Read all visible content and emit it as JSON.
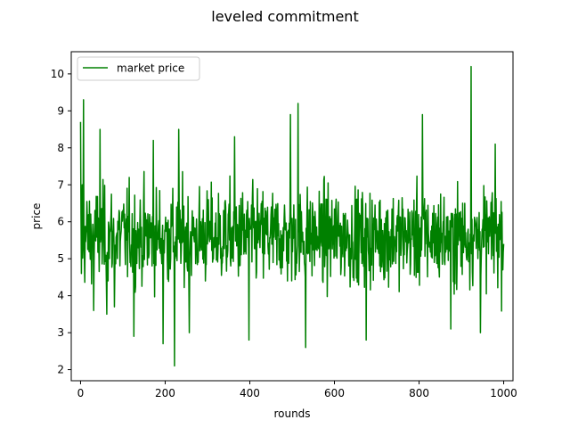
{
  "chart_data": {
    "type": "line",
    "title": "leveled commitment",
    "xlabel": "rounds",
    "ylabel": "price",
    "xlim": [
      -22,
      1022
    ],
    "ylim": [
      1.7,
      10.6
    ],
    "xticks": [
      0,
      200,
      400,
      600,
      800,
      1000
    ],
    "yticks": [
      2,
      3,
      4,
      5,
      6,
      7,
      8,
      9,
      10
    ],
    "grid": false,
    "legend_position": "top-left",
    "series": [
      {
        "name": "market price",
        "color": "#008000",
        "n_points": 1000,
        "mean": 5.6,
        "anchors": [
          {
            "x": 0,
            "y": 8.7
          },
          {
            "x": 2,
            "y": 4.6
          },
          {
            "x": 4,
            "y": 7.0
          },
          {
            "x": 7,
            "y": 9.3
          },
          {
            "x": 9,
            "y": 5.0
          },
          {
            "x": 31,
            "y": 3.6
          },
          {
            "x": 46,
            "y": 8.5
          },
          {
            "x": 62,
            "y": 3.5
          },
          {
            "x": 80,
            "y": 3.7
          },
          {
            "x": 126,
            "y": 2.9
          },
          {
            "x": 172,
            "y": 8.2
          },
          {
            "x": 195,
            "y": 2.7
          },
          {
            "x": 222,
            "y": 2.1
          },
          {
            "x": 232,
            "y": 8.5
          },
          {
            "x": 257,
            "y": 3.0
          },
          {
            "x": 364,
            "y": 8.3
          },
          {
            "x": 398,
            "y": 2.8
          },
          {
            "x": 496,
            "y": 8.9
          },
          {
            "x": 514,
            "y": 9.2
          },
          {
            "x": 532,
            "y": 2.6
          },
          {
            "x": 675,
            "y": 2.8
          },
          {
            "x": 808,
            "y": 8.9
          },
          {
            "x": 875,
            "y": 3.1
          },
          {
            "x": 923,
            "y": 10.2
          },
          {
            "x": 945,
            "y": 3.0
          },
          {
            "x": 980,
            "y": 8.1
          },
          {
            "x": 1000,
            "y": 5.4
          }
        ]
      }
    ]
  }
}
